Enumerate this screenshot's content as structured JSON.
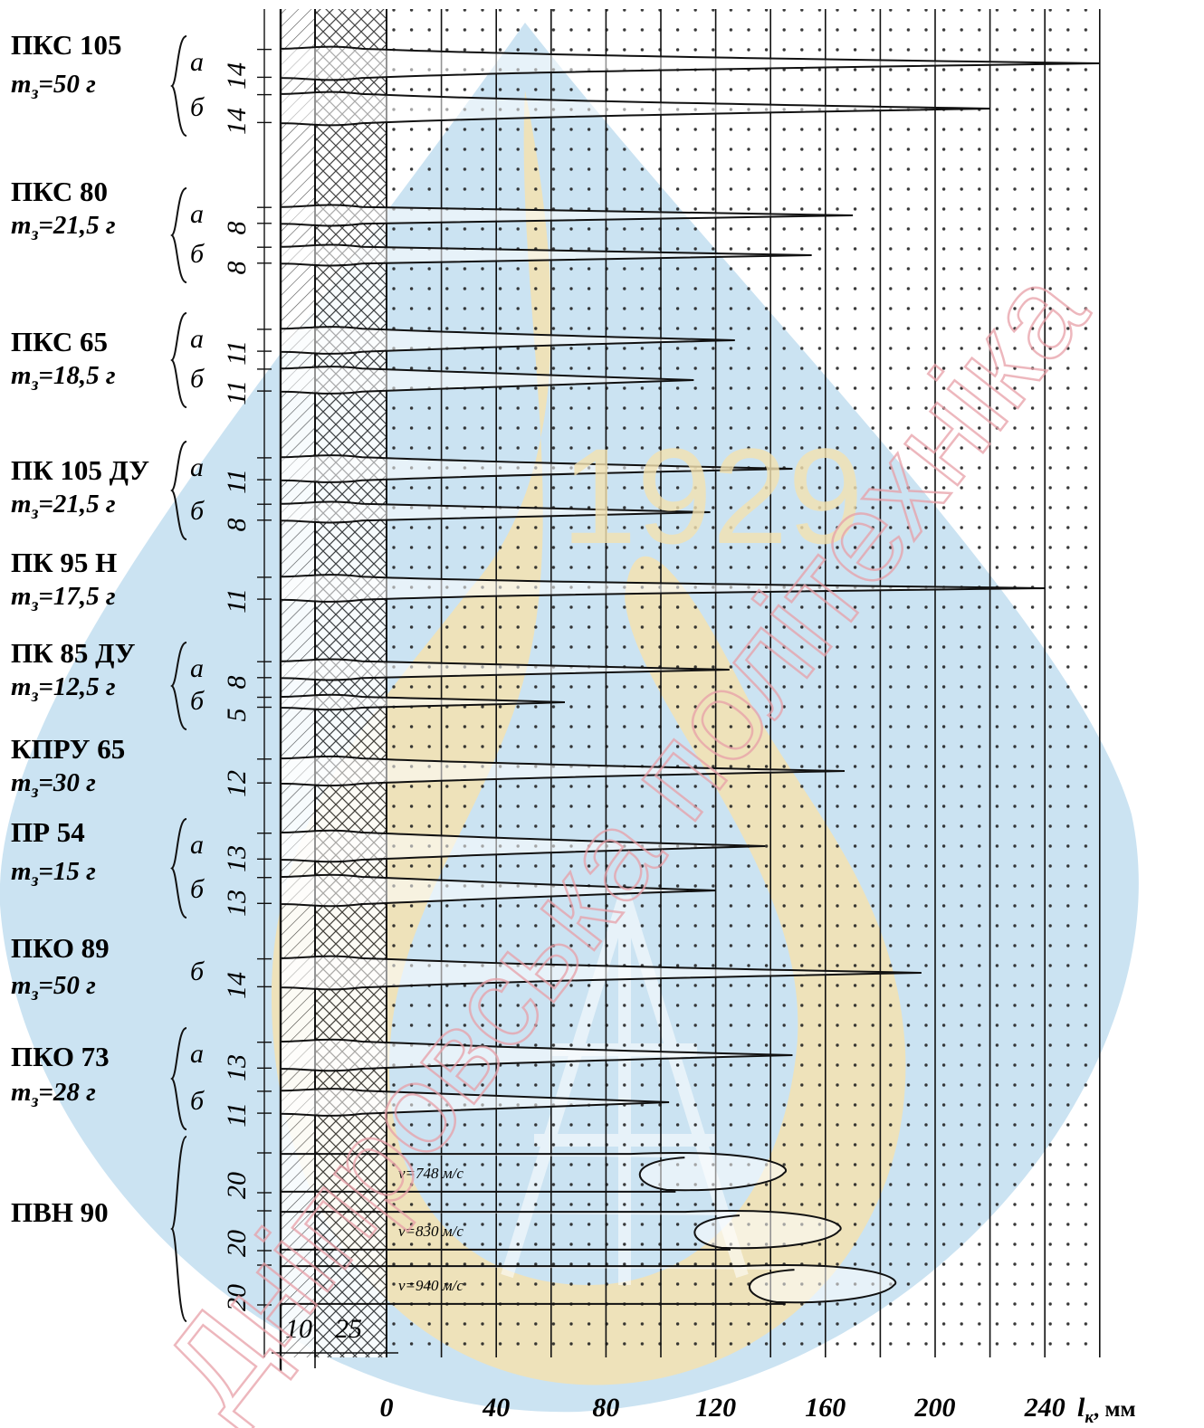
{
  "watermark": {
    "year": "1929",
    "text": "Дніпровська політехніка",
    "colors": {
      "blue": "#b9d9ee",
      "yellow": "#f4e2b0",
      "red": "#e8a0a8"
    }
  },
  "chart_data": {
    "type": "diagram",
    "x_unit": "мм",
    "x_label_main": "l",
    "x_label_sub": "к",
    "x_label_suffix": ", мм",
    "x_ticks": [
      "0",
      "40",
      "80",
      "120",
      "160",
      "200",
      "240"
    ],
    "x_tick_values": [
      0,
      40,
      80,
      120,
      160,
      200,
      240
    ],
    "layer_labels": [
      "10",
      "25"
    ],
    "groups": [
      {
        "name": "ПКС 105",
        "mass": "=50 г",
        "rows": [
          {
            "letter": "а",
            "width": "14",
            "depth": 260
          },
          {
            "letter": "б",
            "width": "14",
            "depth": 220
          }
        ]
      },
      {
        "name": "ПКС 80",
        "mass": "=21,5 г",
        "rows": [
          {
            "letter": "а",
            "width": "8",
            "depth": 170
          },
          {
            "letter": "б",
            "width": "8",
            "depth": 155
          }
        ]
      },
      {
        "name": "ПКС 65",
        "mass": "=18,5 г",
        "rows": [
          {
            "letter": "а",
            "width": "11",
            "depth": 127
          },
          {
            "letter": "б",
            "width": "11",
            "depth": 112
          }
        ]
      },
      {
        "name": "ПК 105 ДУ",
        "mass": "=21,5 г",
        "rows": [
          {
            "letter": "а",
            "width": "11",
            "depth": 148
          },
          {
            "letter": "б",
            "width": "8",
            "depth": 118
          }
        ]
      },
      {
        "name": "ПК 95 Н",
        "mass": "=17,5 г",
        "rows": [
          {
            "letter": "",
            "width": "11",
            "depth": 240
          }
        ]
      },
      {
        "name": "ПК 85 ДУ",
        "mass": "=12,5 г",
        "rows": [
          {
            "letter": "а",
            "width": "8",
            "depth": 125
          },
          {
            "letter": "б",
            "width": "5",
            "depth": 65
          }
        ]
      },
      {
        "name": "КПРУ 65",
        "mass": "=30 г",
        "rows": [
          {
            "letter": "",
            "width": "12",
            "depth": 167
          }
        ]
      },
      {
        "name": "ПР 54",
        "mass": "=15 г",
        "rows": [
          {
            "letter": "а",
            "width": "13",
            "depth": 138
          },
          {
            "letter": "б",
            "width": "13",
            "depth": 120
          }
        ]
      },
      {
        "name": "ПКО 89",
        "mass": "=50 г",
        "rows": [
          {
            "letter": "б",
            "width": "14",
            "depth": 195
          }
        ]
      },
      {
        "name": "ПКО 73",
        "mass": "=28 г",
        "rows": [
          {
            "letter": "а",
            "width": "13",
            "depth": 148
          },
          {
            "letter": "б",
            "width": "11",
            "depth": 103
          }
        ]
      },
      {
        "name": "ПВН 90",
        "mass": "",
        "rows": [
          {
            "letter": "",
            "width": "20",
            "depth": 145,
            "velocity": "v=748 м/с"
          },
          {
            "letter": "",
            "width": "20",
            "depth": 165,
            "velocity": "v=830 м/с"
          },
          {
            "letter": "",
            "width": "20",
            "depth": 185,
            "velocity": "v=940 м/с"
          }
        ]
      }
    ]
  }
}
